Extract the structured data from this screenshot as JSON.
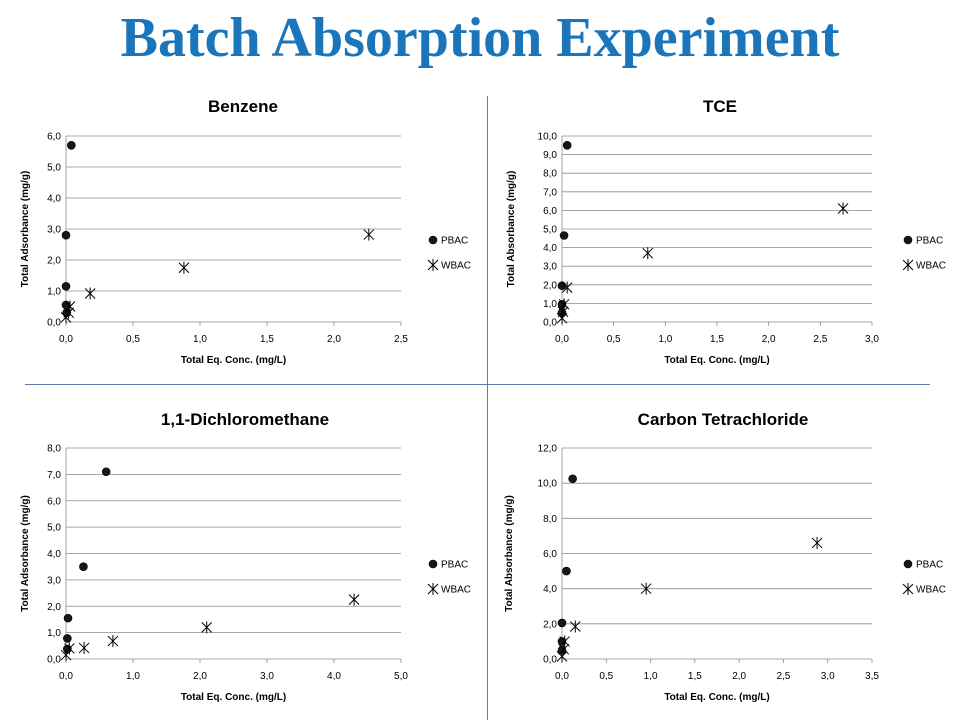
{
  "page_title": "Batch Absorption Experiment",
  "chart_data": [
    {
      "type": "scatter",
      "title": "Benzene",
      "xlabel": "Total Eq. Conc. (mg/L)",
      "ylabel": "Total Adsorbance  (mg/g)",
      "xlim": [
        0,
        2.5
      ],
      "ylim": [
        0,
        6
      ],
      "x_ticks": [
        "0,0",
        "0,5",
        "1,0",
        "1,5",
        "2,0",
        "2,5"
      ],
      "y_ticks": [
        "0,0",
        "1,0",
        "2,0",
        "3,0",
        "4,0",
        "5,0",
        "6,0"
      ],
      "grid": true,
      "legend_position": "right",
      "series": [
        {
          "name": "PBAC",
          "marker": "circle",
          "points": [
            [
              0.005,
              0.3
            ],
            [
              0.0,
              0.55
            ],
            [
              0.0,
              1.15
            ],
            [
              0.0,
              2.8
            ],
            [
              0.04,
              5.7
            ]
          ]
        },
        {
          "name": "WBAC",
          "marker": "star",
          "points": [
            [
              0.0,
              0.15
            ],
            [
              0.02,
              0.3
            ],
            [
              0.03,
              0.5
            ],
            [
              0.18,
              0.92
            ],
            [
              0.88,
              1.75
            ],
            [
              2.26,
              2.82
            ]
          ]
        }
      ]
    },
    {
      "type": "scatter",
      "title": "TCE",
      "xlabel": "Total Eq. Conc. (mg/L)",
      "ylabel": "Total Absorbance  (mg/g)",
      "xlim": [
        0,
        3
      ],
      "ylim": [
        0,
        10
      ],
      "x_ticks": [
        "0,0",
        "0,5",
        "1,0",
        "1,5",
        "2,0",
        "2,5",
        "3,0"
      ],
      "y_ticks": [
        "0,0",
        "1,0",
        "2,0",
        "3,0",
        "4,0",
        "5,0",
        "6,0",
        "7,0",
        "8,0",
        "9,0",
        "10,0"
      ],
      "grid": true,
      "legend_position": "right",
      "series": [
        {
          "name": "PBAC",
          "marker": "circle",
          "points": [
            [
              0.0,
              0.5
            ],
            [
              0.0,
              0.95
            ],
            [
              0.0,
              1.95
            ],
            [
              0.02,
              4.65
            ],
            [
              0.05,
              9.5
            ]
          ]
        },
        {
          "name": "WBAC",
          "marker": "star",
          "points": [
            [
              0.0,
              0.2
            ],
            [
              0.01,
              0.55
            ],
            [
              0.02,
              0.95
            ],
            [
              0.05,
              1.85
            ],
            [
              0.83,
              3.7
            ],
            [
              2.72,
              6.1
            ]
          ]
        }
      ]
    },
    {
      "type": "scatter",
      "title": "1,1-Dichloromethane",
      "xlabel": "Total Eq. Conc. (mg/L)",
      "ylabel": "Total Adsorbance  (mg/g)",
      "xlim": [
        0,
        5
      ],
      "ylim": [
        0,
        8
      ],
      "x_ticks": [
        "0,0",
        "1,0",
        "2,0",
        "3,0",
        "4,0",
        "5,0"
      ],
      "y_ticks": [
        "0,0",
        "1,0",
        "2,0",
        "3,0",
        "4,0",
        "5,0",
        "6,0",
        "7,0",
        "8,0"
      ],
      "grid": true,
      "legend_position": "right",
      "series": [
        {
          "name": "PBAC",
          "marker": "circle",
          "points": [
            [
              0.02,
              0.38
            ],
            [
              0.02,
              0.78
            ],
            [
              0.03,
              1.55
            ],
            [
              0.26,
              3.5
            ],
            [
              0.6,
              7.1
            ]
          ]
        },
        {
          "name": "WBAC",
          "marker": "star",
          "points": [
            [
              0.0,
              0.15
            ],
            [
              0.05,
              0.4
            ],
            [
              0.27,
              0.42
            ],
            [
              0.7,
              0.68
            ],
            [
              2.1,
              1.2
            ],
            [
              4.3,
              2.25
            ]
          ]
        }
      ]
    },
    {
      "type": "scatter",
      "title": "Carbon Tetrachloride",
      "xlabel": "Total Eq. Conc. (mg/L)",
      "ylabel": "Total Absorbance  (mg/g)",
      "xlim": [
        0,
        3.5
      ],
      "ylim": [
        0,
        12
      ],
      "x_ticks": [
        "0,0",
        "0,5",
        "1,0",
        "1,5",
        "2,0",
        "2,5",
        "3,0",
        "3,5"
      ],
      "y_ticks": [
        "0,0",
        "2,0",
        "4,0",
        "6,0",
        "8,0",
        "10,0",
        "12,0"
      ],
      "grid": true,
      "legend_position": "right",
      "series": [
        {
          "name": "PBAC",
          "marker": "circle",
          "points": [
            [
              0.0,
              0.5
            ],
            [
              0.0,
              1.0
            ],
            [
              0.0,
              2.05
            ],
            [
              0.05,
              5.0
            ],
            [
              0.12,
              10.25
            ]
          ]
        },
        {
          "name": "WBAC",
          "marker": "star",
          "points": [
            [
              0.0,
              0.15
            ],
            [
              0.02,
              0.55
            ],
            [
              0.03,
              1.0
            ],
            [
              0.15,
              1.85
            ],
            [
              0.95,
              4.0
            ],
            [
              2.88,
              6.6
            ]
          ]
        }
      ]
    }
  ]
}
